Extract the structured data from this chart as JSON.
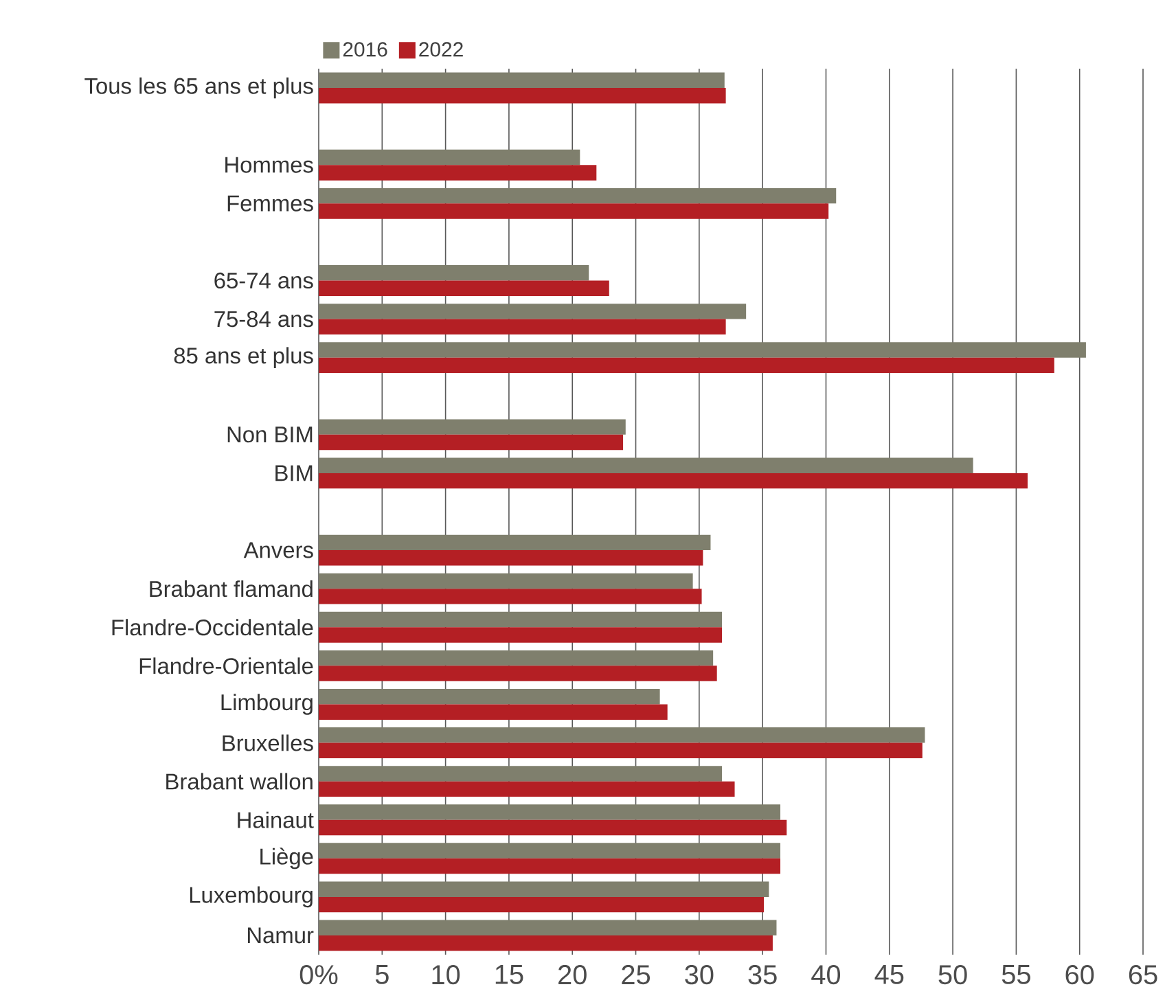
{
  "chart_data": {
    "type": "bar",
    "orientation": "horizontal",
    "categories": [
      "Tous les 65 ans et plus",
      null,
      "Hommes",
      "Femmes",
      null,
      "65-74 ans",
      "75-84 ans",
      "85 ans et plus",
      null,
      "Non BIM",
      "BIM",
      null,
      "Anvers",
      "Brabant flamand",
      "Flandre-Occidentale",
      "Flandre-Orientale",
      "Limbourg",
      "Bruxelles",
      "Brabant wallon",
      "Hainaut",
      "Liège",
      "Luxembourg",
      "Namur"
    ],
    "series": [
      {
        "name": "2016",
        "color": "#7f7f6d",
        "values": [
          32.0,
          null,
          20.6,
          40.8,
          null,
          21.3,
          33.7,
          60.5,
          null,
          24.2,
          51.6,
          null,
          30.9,
          29.5,
          31.8,
          31.1,
          26.9,
          47.8,
          31.8,
          36.4,
          36.4,
          35.5,
          36.1
        ]
      },
      {
        "name": "2022",
        "color": "#b41f24",
        "values": [
          32.1,
          null,
          21.9,
          40.2,
          null,
          22.9,
          32.1,
          58.0,
          null,
          24.0,
          55.9,
          null,
          30.3,
          30.2,
          31.8,
          31.4,
          27.5,
          47.6,
          32.8,
          36.9,
          36.4,
          35.1,
          35.8
        ]
      }
    ],
    "xlim": [
      0,
      65
    ],
    "xticks": [
      {
        "value": 0,
        "label": "0%"
      },
      5,
      10,
      15,
      20,
      25,
      30,
      35,
      40,
      45,
      50,
      55,
      60,
      65
    ],
    "grid": "x",
    "legend": "top left"
  }
}
